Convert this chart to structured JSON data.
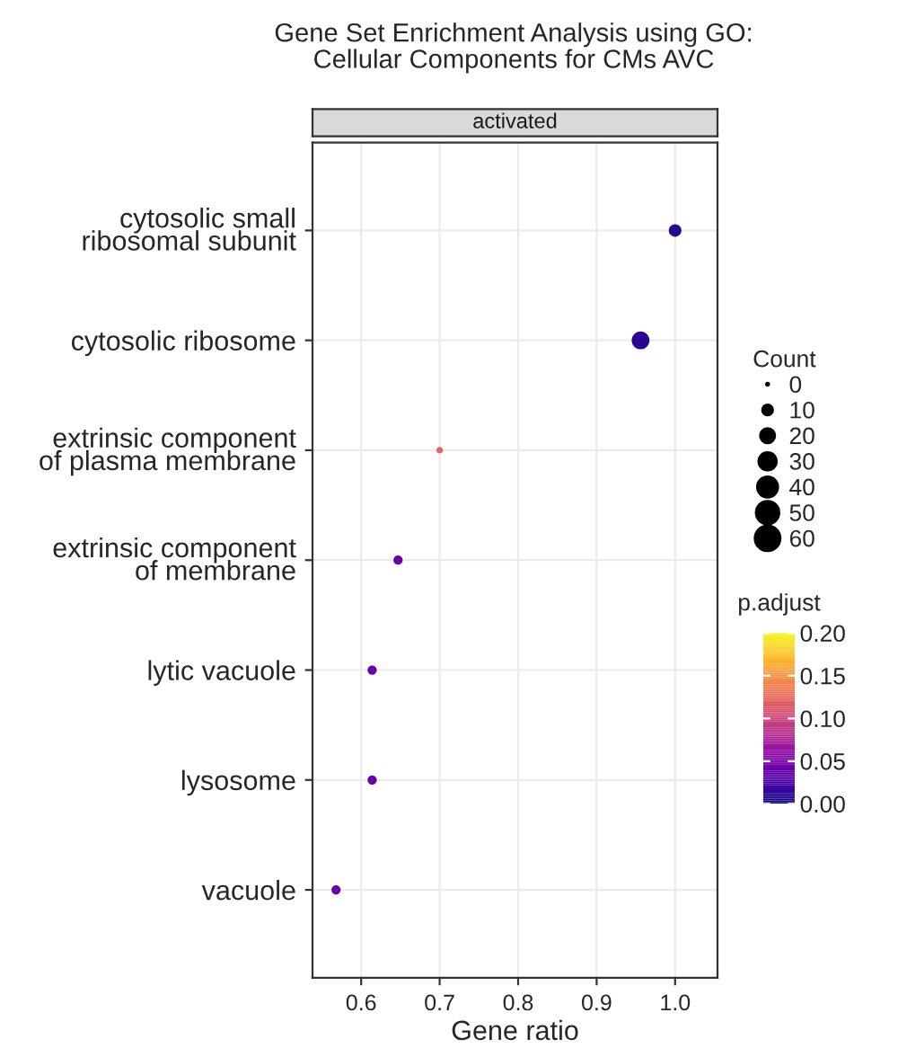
{
  "chart_data": {
    "type": "scatter",
    "orientation": "horizontal",
    "title": "Gene Set Enrichment Analysis using GO:\nCellular Components for CMs AVC",
    "annotations": [
      "activated"
    ],
    "categories": [
      "cytosolic small\nribosomal subunit",
      "cytosolic ribosome",
      "extrinsic component\nof plasma membrane",
      "extrinsic component\nof membrane",
      "lytic vacuole",
      "lysosome",
      "vacuole"
    ],
    "values": [
      1.0,
      0.956,
      0.7,
      0.647,
      0.614,
      0.614,
      0.568
    ],
    "sizes": [
      15,
      30,
      4,
      8,
      8,
      8,
      8
    ],
    "size_legend": [
      0,
      10,
      20,
      30,
      40,
      50,
      60
    ],
    "cvalues": [
      0.01,
      0.01,
      0.12,
      0.04,
      0.04,
      0.04,
      0.04
    ],
    "clim": [
      0,
      0.2
    ],
    "cticks": [
      {
        "value": 0,
        "label": "0.00"
      },
      0.05,
      {
        "value": 0.1,
        "label": "0.10"
      },
      0.15,
      {
        "value": 0.2,
        "label": "0.20"
      }
    ],
    "clabel": "p.adjust",
    "legend_title": "Count",
    "xlabel": "Gene ratio",
    "xlim": [
      0.538,
      1.054
    ],
    "xticks": [
      0.6,
      0.7,
      0.8,
      0.9,
      {
        "value": 1.0,
        "label": "1.0"
      }
    ],
    "grid": true,
    "marker": "circle"
  }
}
